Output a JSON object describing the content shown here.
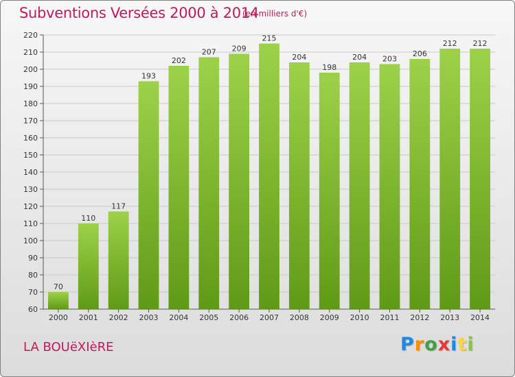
{
  "header": {
    "title": "Subventions Versées 2000 à 2014",
    "unit": "(en milliers d'€)"
  },
  "footer": {
    "commune": "LA BOUëXIèRE",
    "logo_letters": [
      {
        "char": "P",
        "color": "#1e88e5"
      },
      {
        "char": "r",
        "color": "#fb8c00"
      },
      {
        "char": "o",
        "color": "#43a047"
      },
      {
        "char": "x",
        "color": "#e53935"
      },
      {
        "char": "i",
        "color": "#1e88e5"
      },
      {
        "char": "t",
        "color": "#fdd835"
      },
      {
        "char": "i",
        "color": "#8bc34a"
      }
    ]
  },
  "chart_data": {
    "type": "bar",
    "categories": [
      "2000",
      "2001",
      "2002",
      "2003",
      "2004",
      "2005",
      "2006",
      "2007",
      "2008",
      "2009",
      "2010",
      "2011",
      "2012",
      "2013",
      "2014"
    ],
    "values": [
      70,
      110,
      117,
      193,
      202,
      207,
      209,
      215,
      204,
      198,
      204,
      203,
      206,
      212,
      212
    ],
    "title": "Subventions Versées 2000 à 2014",
    "ylim": [
      60,
      220
    ],
    "yticks": [
      60,
      70,
      80,
      90,
      100,
      110,
      120,
      130,
      140,
      150,
      160,
      170,
      180,
      190,
      200,
      210,
      220
    ],
    "grid": true,
    "bar_color": "#7cbb2e",
    "bar_color_light": "#9ed14a",
    "bar_color_dark": "#5f9a17"
  }
}
